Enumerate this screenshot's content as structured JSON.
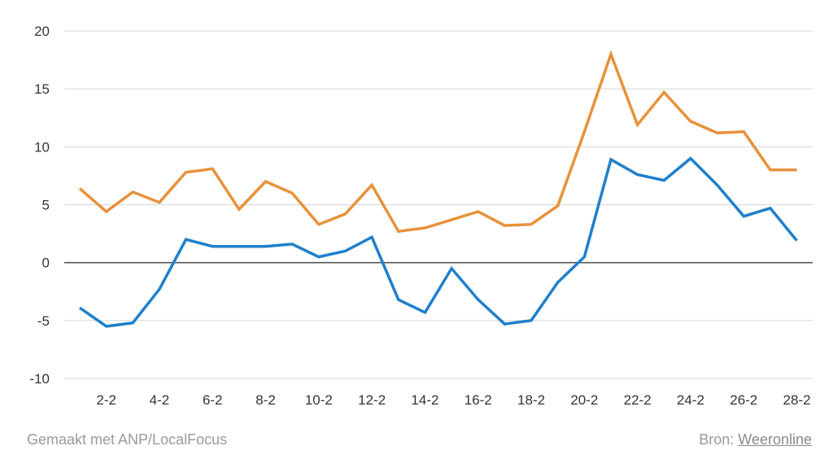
{
  "chart_data": {
    "type": "line",
    "title": "",
    "xlabel": "",
    "ylabel": "",
    "ylim": [
      -10,
      20
    ],
    "yticks": [
      20,
      15,
      10,
      5,
      0,
      -5,
      -10
    ],
    "x": [
      "1-2",
      "2-2",
      "3-2",
      "4-2",
      "5-2",
      "6-2",
      "7-2",
      "8-2",
      "9-2",
      "10-2",
      "11-2",
      "12-2",
      "13-2",
      "14-2",
      "15-2",
      "16-2",
      "17-2",
      "18-2",
      "19-2",
      "20-2",
      "21-2",
      "22-2",
      "23-2",
      "24-2",
      "25-2",
      "26-2",
      "27-2",
      "28-2"
    ],
    "xtick_labels": [
      "2-2",
      "4-2",
      "6-2",
      "8-2",
      "10-2",
      "12-2",
      "14-2",
      "16-2",
      "18-2",
      "20-2",
      "22-2",
      "24-2",
      "26-2",
      "28-2"
    ],
    "grid": true,
    "series": [
      {
        "color": "#e8913a",
        "values": [
          6.4,
          4.4,
          6.1,
          5.2,
          7.8,
          8.1,
          4.6,
          7.0,
          6.0,
          3.3,
          4.2,
          6.7,
          2.7,
          3.0,
          3.7,
          4.4,
          3.2,
          3.3,
          4.9,
          11.3,
          18.0,
          11.9,
          14.7,
          12.2,
          11.2,
          11.3,
          8.0,
          8.0
        ]
      },
      {
        "color": "#1f7fcc",
        "values": [
          -3.9,
          -5.5,
          -5.2,
          -2.3,
          2.0,
          1.4,
          1.4,
          1.4,
          1.6,
          0.5,
          1.0,
          2.2,
          -3.2,
          -4.3,
          -0.5,
          -3.2,
          -5.3,
          -5.0,
          -1.7,
          0.5,
          8.9,
          7.6,
          7.1,
          9.0,
          6.7,
          4.0,
          4.7,
          1.9
        ]
      }
    ],
    "zero_line_color": "#555555",
    "grid_color": "#dcdcdc"
  },
  "footer": {
    "made_with": "Gemaakt met ANP/LocalFocus",
    "source_label": "Bron:",
    "source_link": "Weeronline"
  }
}
